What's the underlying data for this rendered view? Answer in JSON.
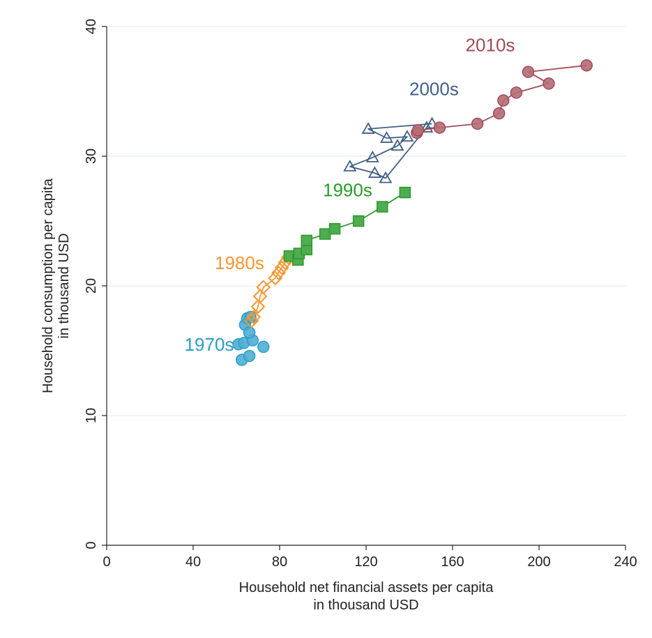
{
  "chart_data": {
    "type": "scatter",
    "xlabel": [
      "Household net financial assets per capita",
      "in thousand USD"
    ],
    "ylabel": [
      "Household consumption per capita",
      "in thousand USD"
    ],
    "xlim": [
      0,
      240
    ],
    "ylim": [
      0,
      40
    ],
    "x_ticks": [
      0,
      40,
      80,
      120,
      160,
      200,
      240
    ],
    "y_ticks": [
      0,
      10,
      20,
      30,
      40
    ],
    "grid": "horizontal",
    "series": [
      {
        "name": "1970s",
        "marker": "circle",
        "color": "#2b9cc9",
        "connected": false,
        "points": [
          [
            62.5,
            14.3
          ],
          [
            66,
            14.6
          ],
          [
            72.5,
            15.3
          ],
          [
            61,
            15.5
          ],
          [
            63.5,
            15.6
          ],
          [
            67.5,
            15.8
          ],
          [
            64,
            17.0
          ],
          [
            66,
            16.4
          ],
          [
            65,
            17.5
          ],
          [
            66.5,
            17.6
          ]
        ]
      },
      {
        "name": "1980s",
        "marker": "diamond-open",
        "color": "#f7962f",
        "connected": true,
        "points": [
          [
            67,
            17.3
          ],
          [
            68,
            17.6
          ],
          [
            70,
            18.4
          ],
          [
            71,
            19.2
          ],
          [
            72.5,
            19.9
          ],
          [
            78,
            20.6
          ],
          [
            79.5,
            21.0
          ],
          [
            81,
            21.4
          ],
          [
            82.5,
            21.8
          ],
          [
            84,
            22.2
          ]
        ]
      },
      {
        "name": "1990s",
        "marker": "square",
        "color": "#2a9a2a",
        "connected": true,
        "points": [
          [
            84.5,
            22.3
          ],
          [
            88.5,
            22.0
          ],
          [
            89,
            22.5
          ],
          [
            92.5,
            22.8
          ],
          [
            92.5,
            23.5
          ],
          [
            101,
            24.0
          ],
          [
            105.5,
            24.4
          ],
          [
            116.5,
            25.0
          ],
          [
            127.5,
            26.1
          ],
          [
            138,
            27.2
          ]
        ]
      },
      {
        "name": "2000s",
        "marker": "triangle-open",
        "color": "#3f5f88",
        "connected": true,
        "points": [
          [
            150.5,
            32.5
          ],
          [
            121,
            32.1
          ],
          [
            129.5,
            31.4
          ],
          [
            139,
            31.5
          ],
          [
            134.5,
            30.8
          ],
          [
            123,
            29.9
          ],
          [
            112.5,
            29.2
          ],
          [
            124,
            28.7
          ],
          [
            129,
            28.3
          ],
          [
            148,
            32.2
          ]
        ]
      },
      {
        "name": "2010s",
        "marker": "circle",
        "color": "#a34a55",
        "connected": true,
        "points": [
          [
            143.5,
            31.8
          ],
          [
            144,
            32.0
          ],
          [
            154,
            32.2
          ],
          [
            171.5,
            32.5
          ],
          [
            181.5,
            33.3
          ],
          [
            183.5,
            34.3
          ],
          [
            189.5,
            34.9
          ],
          [
            204.5,
            35.6
          ],
          [
            195,
            36.5
          ],
          [
            222,
            37.0
          ]
        ]
      }
    ],
    "annotations": [
      {
        "text": "1970s",
        "series": "1970s",
        "x": 36,
        "y": 15.0
      },
      {
        "text": "1980s",
        "series": "1980s",
        "x": 50,
        "y": 21.3
      },
      {
        "text": "1990s",
        "series": "1990s",
        "x": 100,
        "y": 26.9
      },
      {
        "text": "2000s",
        "series": "2000s",
        "x": 140,
        "y": 34.7
      },
      {
        "text": "2010s",
        "series": "2010s",
        "x": 166,
        "y": 38.1
      }
    ]
  }
}
